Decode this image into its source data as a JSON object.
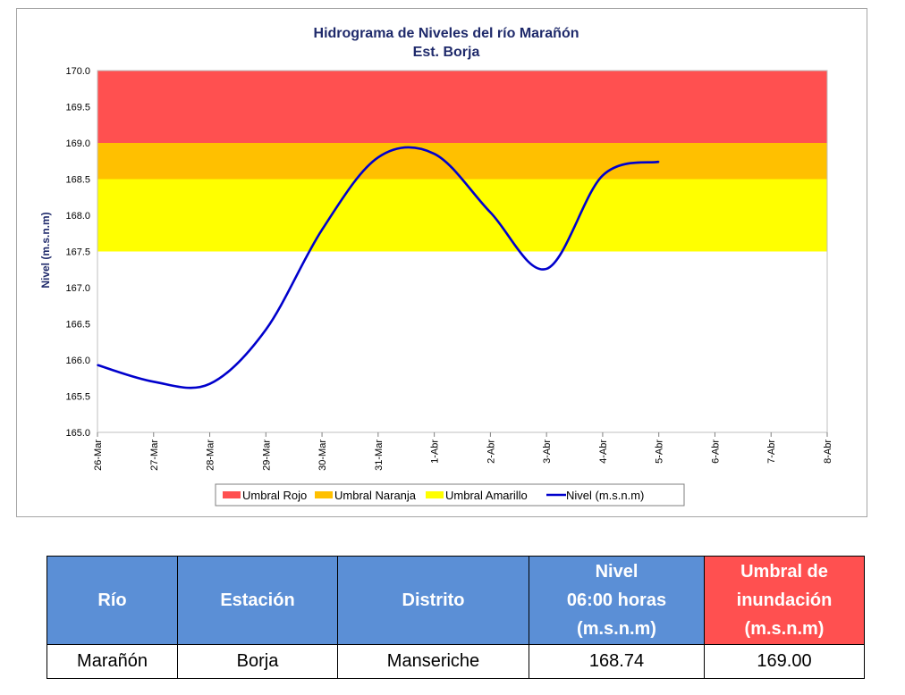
{
  "chart_data": {
    "type": "line",
    "title": "Hidrograma de Niveles del río Marañón",
    "subtitle": "Est. Borja",
    "ylabel": "Nivel (m.s.n.m)",
    "xlabel": "",
    "ylim": [
      165.0,
      170.0
    ],
    "yticks": [
      "165.0",
      "165.5",
      "166.0",
      "166.5",
      "167.0",
      "167.5",
      "168.0",
      "168.5",
      "169.0",
      "169.5",
      "170.0"
    ],
    "categories": [
      "26-Mar",
      "27-Mar",
      "28-Mar",
      "29-Mar",
      "30-Mar",
      "31-Mar",
      "1-Abr",
      "2-Abr",
      "3-Abr",
      "4-Abr",
      "5-Abr",
      "6-Abr",
      "7-Abr",
      "8-Abr"
    ],
    "bands": [
      {
        "name": "Umbral Rojo",
        "from": 169.0,
        "to": 170.0,
        "color": "#ff5050"
      },
      {
        "name": "Umbral Naranja",
        "from": 168.5,
        "to": 169.0,
        "color": "#ffc000"
      },
      {
        "name": "Umbral Amarillo",
        "from": 167.5,
        "to": 168.5,
        "color": "#ffff00"
      }
    ],
    "series": [
      {
        "name": "Nivel (m.s.n.m)",
        "color": "#0000cc",
        "points": [
          [
            "26-Mar",
            165.93
          ],
          [
            "27-Mar",
            165.7
          ],
          [
            "28-Mar",
            165.67
          ],
          [
            "29-Mar",
            166.42
          ],
          [
            "30-Mar",
            167.8
          ],
          [
            "31-Mar",
            168.8
          ],
          [
            "1-Abr",
            168.85
          ],
          [
            "2-Abr",
            168.04
          ],
          [
            "3-Abr",
            167.26
          ],
          [
            "4-Abr",
            168.55
          ],
          [
            "5-Abr",
            168.74
          ]
        ]
      }
    ],
    "legend": [
      "Umbral Rojo",
      "Umbral Naranja",
      "Umbral Amarillo",
      "Nivel (m.s.n.m)"
    ],
    "legend_position": "bottom"
  },
  "table": {
    "headers": {
      "rio": "Río",
      "estacion": "Estación",
      "distrito": "Distrito",
      "nivel": [
        "Nivel",
        "06:00 horas",
        "(m.s.n.m)"
      ],
      "umbral": [
        "Umbral de",
        "inundación",
        "(m.s.n.m)"
      ]
    },
    "row": {
      "rio": "Marañón",
      "estacion": "Borja",
      "distrito": "Manseriche",
      "nivel": "168.74",
      "umbral": "169.00"
    }
  },
  "colors": {
    "header_blue": "#5b8fd6",
    "header_red": "#ff5050",
    "title": "#1f2a6b"
  }
}
